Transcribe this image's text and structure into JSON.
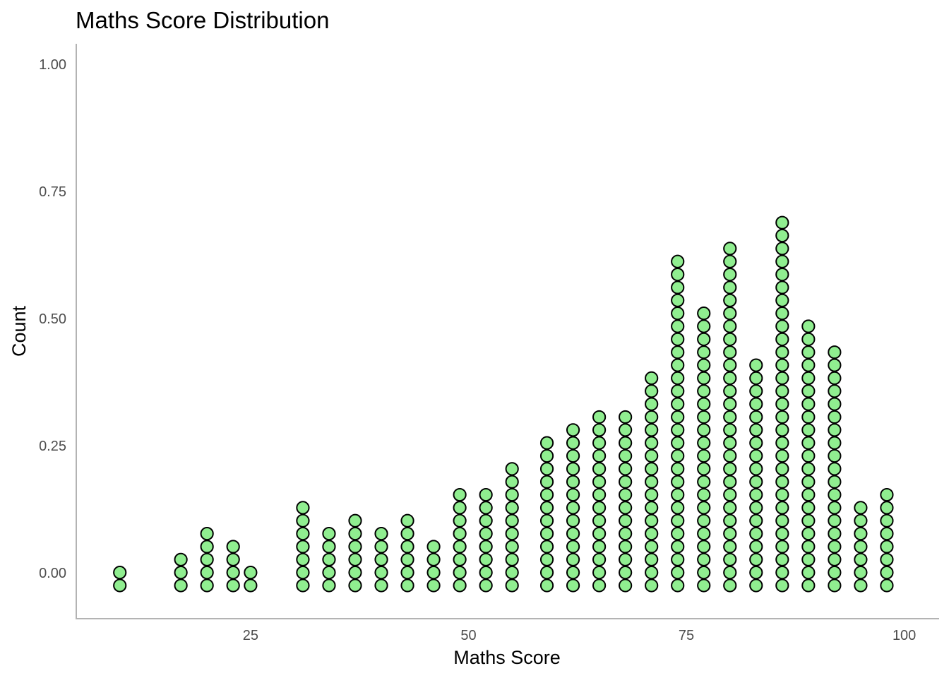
{
  "chart_data": {
    "type": "scatter",
    "subtype": "dotplot",
    "title": "Maths Score Distribution",
    "xlabel": "Maths Score",
    "ylabel": "Count",
    "xlim": [
      5,
      104
    ],
    "ylim": [
      -0.09,
      1.04
    ],
    "x_ticks": [
      25,
      50,
      75,
      100
    ],
    "x_tick_labels": [
      "25",
      "50",
      "75",
      "100"
    ],
    "y_ticks": [
      0.0,
      0.25,
      0.5,
      0.75,
      1.0
    ],
    "y_tick_labels": [
      "0.00",
      "0.25",
      "0.50",
      "0.75",
      "1.00"
    ],
    "dot_fill": "#90ee90",
    "dot_stroke": "#000000",
    "grid": false,
    "stacks": [
      {
        "x": 10,
        "count": 2
      },
      {
        "x": 17,
        "count": 3
      },
      {
        "x": 20,
        "count": 5
      },
      {
        "x": 23,
        "count": 4
      },
      {
        "x": 25,
        "count": 2
      },
      {
        "x": 31,
        "count": 7
      },
      {
        "x": 34,
        "count": 5
      },
      {
        "x": 37,
        "count": 6
      },
      {
        "x": 40,
        "count": 5
      },
      {
        "x": 43,
        "count": 6
      },
      {
        "x": 46,
        "count": 4
      },
      {
        "x": 49,
        "count": 8
      },
      {
        "x": 52,
        "count": 8
      },
      {
        "x": 55,
        "count": 10
      },
      {
        "x": 59,
        "count": 12
      },
      {
        "x": 62,
        "count": 13
      },
      {
        "x": 65,
        "count": 14
      },
      {
        "x": 68,
        "count": 14
      },
      {
        "x": 71,
        "count": 17
      },
      {
        "x": 74,
        "count": 26
      },
      {
        "x": 77,
        "count": 22
      },
      {
        "x": 80,
        "count": 27
      },
      {
        "x": 83,
        "count": 18
      },
      {
        "x": 86,
        "count": 29
      },
      {
        "x": 89,
        "count": 21
      },
      {
        "x": 92,
        "count": 19
      },
      {
        "x": 95,
        "count": 7
      },
      {
        "x": 98,
        "count": 8
      }
    ]
  }
}
